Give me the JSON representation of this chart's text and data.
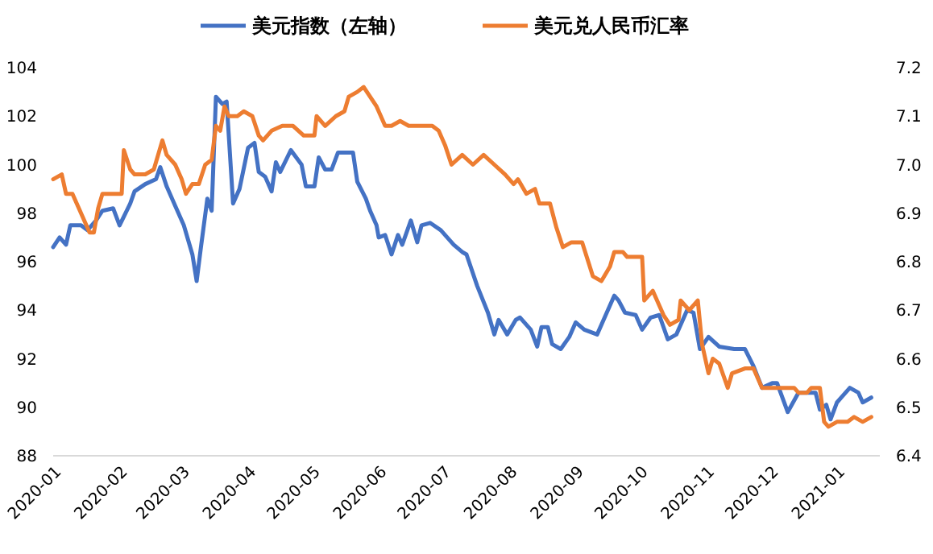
{
  "chart_data": {
    "type": "line",
    "legend": "top",
    "grid": false,
    "marker": "none",
    "line_style": "solid",
    "xlim": [
      "2020-01-01",
      "2021-01-21"
    ],
    "xticks": [
      "2020-01",
      "2020-02",
      "2020-03",
      "2020-04",
      "2020-05",
      "2020-06",
      "2020-07",
      "2020-08",
      "2020-09",
      "2020-10",
      "2020-11",
      "2020-12",
      "2021-01"
    ],
    "ylim": [
      88,
      104
    ],
    "yticks": [
      88,
      90,
      92,
      94,
      96,
      98,
      100,
      102,
      104
    ],
    "y2lim": [
      6.4,
      7.2
    ],
    "y2ticks": [
      {
        "value": 6.4,
        "label": "6.4"
      },
      {
        "value": 6.5,
        "label": "6.5"
      },
      {
        "value": 6.6,
        "label": "6.6"
      },
      {
        "value": 6.7,
        "label": "6.7"
      },
      {
        "value": 6.8,
        "label": "6.8"
      },
      {
        "value": 6.9,
        "label": "6.9"
      },
      {
        "value": 7.0,
        "label": "7.0"
      },
      {
        "value": 7.1,
        "label": "7.1"
      },
      {
        "value": 7.2,
        "label": "7.2"
      }
    ],
    "series": [
      {
        "name": "美元指数（左轴）",
        "color": "#4472c4",
        "x": [
          "2020-01-01",
          "2020-01-04",
          "2020-01-07",
          "2020-01-09",
          "2020-01-14",
          "2020-01-17",
          "2020-01-21",
          "2020-01-24",
          "2020-01-29",
          "2020-02-01",
          "2020-02-06",
          "2020-02-08",
          "2020-02-13",
          "2020-02-18",
          "2020-02-20",
          "2020-02-23",
          "2020-02-27",
          "2020-03-02",
          "2020-03-06",
          "2020-03-08",
          "2020-03-10",
          "2020-03-13",
          "2020-03-15",
          "2020-03-17",
          "2020-03-20",
          "2020-03-22",
          "2020-03-25",
          "2020-03-28",
          "2020-04-01",
          "2020-04-04",
          "2020-04-06",
          "2020-04-09",
          "2020-04-12",
          "2020-04-14",
          "2020-04-16",
          "2020-04-21",
          "2020-04-26",
          "2020-04-28",
          "2020-05-02",
          "2020-05-04",
          "2020-05-07",
          "2020-05-10",
          "2020-05-13",
          "2020-05-20",
          "2020-05-22",
          "2020-05-26",
          "2020-05-28",
          "2020-05-31",
          "2020-06-01",
          "2020-06-04",
          "2020-06-07",
          "2020-06-10",
          "2020-06-12",
          "2020-06-16",
          "2020-06-19",
          "2020-06-21",
          "2020-06-25",
          "2020-06-30",
          "2020-07-04",
          "2020-07-06",
          "2020-07-10",
          "2020-07-12",
          "2020-07-17",
          "2020-07-22",
          "2020-07-25",
          "2020-07-27",
          "2020-07-31",
          "2020-08-04",
          "2020-08-06",
          "2020-08-11",
          "2020-08-14",
          "2020-08-16",
          "2020-08-19",
          "2020-08-21",
          "2020-08-25",
          "2020-08-29",
          "2020-09-01",
          "2020-09-05",
          "2020-09-11",
          "2020-09-15",
          "2020-09-19",
          "2020-09-21",
          "2020-09-24",
          "2020-09-29",
          "2020-10-02",
          "2020-10-06",
          "2020-10-10",
          "2020-10-14",
          "2020-10-18",
          "2020-10-23",
          "2020-10-26",
          "2020-10-29",
          "2020-11-02",
          "2020-11-07",
          "2020-11-14",
          "2020-11-19",
          "2020-11-23",
          "2020-11-27",
          "2020-12-02",
          "2020-12-04",
          "2020-12-09",
          "2020-12-14",
          "2020-12-18",
          "2020-12-22",
          "2020-12-24",
          "2020-12-27",
          "2020-12-29",
          "2021-01-01",
          "2021-01-03",
          "2021-01-07",
          "2021-01-11",
          "2021-01-13",
          "2021-01-17"
        ],
        "values": [
          96.6,
          97.0,
          96.7,
          97.5,
          97.5,
          97.3,
          97.7,
          98.1,
          98.2,
          97.5,
          98.4,
          98.9,
          99.2,
          99.4,
          99.9,
          99.1,
          98.3,
          97.5,
          96.3,
          95.2,
          96.6,
          98.6,
          98.1,
          102.8,
          102.5,
          102.6,
          98.4,
          99.0,
          100.7,
          100.9,
          99.7,
          99.5,
          98.9,
          100.1,
          99.7,
          100.6,
          100.0,
          99.1,
          99.1,
          100.3,
          99.8,
          99.8,
          100.5,
          100.5,
          99.3,
          98.6,
          98.1,
          97.5,
          97.0,
          97.1,
          96.3,
          97.1,
          96.7,
          97.7,
          96.8,
          97.5,
          97.6,
          97.3,
          96.9,
          96.7,
          96.4,
          96.3,
          95.0,
          93.9,
          93.0,
          93.6,
          93.0,
          93.6,
          93.7,
          93.2,
          92.5,
          93.3,
          93.3,
          92.6,
          92.4,
          92.9,
          93.5,
          93.2,
          93.0,
          93.8,
          94.6,
          94.4,
          93.9,
          93.8,
          93.2,
          93.7,
          93.8,
          92.8,
          93.0,
          94.0,
          93.9,
          92.4,
          92.9,
          92.5,
          92.4,
          92.4,
          91.7,
          90.8,
          91.0,
          91.0,
          89.8,
          90.6,
          90.6,
          90.6,
          89.9,
          90.1,
          89.5,
          90.2,
          90.4,
          90.8,
          90.6,
          90.2,
          90.4
        ]
      },
      {
        "name": "美元兑人民币汇率",
        "color": "#ed7d31",
        "axis": "y2",
        "x": [
          "2020-01-01",
          "2020-01-05",
          "2020-01-07",
          "2020-01-10",
          "2020-01-12",
          "2020-01-15",
          "2020-01-18",
          "2020-01-20",
          "2020-01-22",
          "2020-01-24",
          "2020-01-30",
          "2020-02-02",
          "2020-02-03",
          "2020-02-06",
          "2020-02-08",
          "2020-02-13",
          "2020-02-17",
          "2020-02-21",
          "2020-02-23",
          "2020-02-27",
          "2020-03-01",
          "2020-03-03",
          "2020-03-06",
          "2020-03-09",
          "2020-03-12",
          "2020-03-15",
          "2020-03-17",
          "2020-03-19",
          "2020-03-21",
          "2020-03-23",
          "2020-03-27",
          "2020-03-30",
          "2020-04-03",
          "2020-04-06",
          "2020-04-08",
          "2020-04-12",
          "2020-04-17",
          "2020-04-22",
          "2020-04-27",
          "2020-05-02",
          "2020-05-03",
          "2020-05-07",
          "2020-05-12",
          "2020-05-16",
          "2020-05-18",
          "2020-05-22",
          "2020-05-25",
          "2020-05-28",
          "2020-05-31",
          "2020-06-04",
          "2020-06-07",
          "2020-06-11",
          "2020-06-15",
          "2020-06-20",
          "2020-06-26",
          "2020-06-29",
          "2020-07-02",
          "2020-07-05",
          "2020-07-10",
          "2020-07-15",
          "2020-07-20",
          "2020-07-25",
          "2020-07-30",
          "2020-08-03",
          "2020-08-05",
          "2020-08-09",
          "2020-08-13",
          "2020-08-15",
          "2020-08-20",
          "2020-08-23",
          "2020-08-26",
          "2020-08-30",
          "2020-09-04",
          "2020-09-09",
          "2020-09-13",
          "2020-09-17",
          "2020-09-19",
          "2020-09-23",
          "2020-09-25",
          "2020-10-02",
          "2020-10-03",
          "2020-10-07",
          "2020-10-09",
          "2020-10-12",
          "2020-10-15",
          "2020-10-19",
          "2020-10-20",
          "2020-10-24",
          "2020-10-28",
          "2020-10-30",
          "2020-11-02",
          "2020-11-04",
          "2020-11-07",
          "2020-11-11",
          "2020-11-13",
          "2020-11-19",
          "2020-11-23",
          "2020-11-27",
          "2020-12-02",
          "2020-12-07",
          "2020-12-12",
          "2020-12-14",
          "2020-12-18",
          "2020-12-20",
          "2020-12-24",
          "2020-12-26",
          "2020-12-28",
          "2021-01-01",
          "2021-01-06",
          "2021-01-09",
          "2021-01-13",
          "2021-01-17"
        ],
        "values": [
          6.97,
          6.98,
          6.94,
          6.94,
          6.92,
          6.89,
          6.86,
          6.86,
          6.91,
          6.94,
          6.94,
          6.94,
          7.03,
          6.99,
          6.98,
          6.98,
          6.99,
          7.05,
          7.02,
          7.0,
          6.97,
          6.94,
          6.96,
          6.96,
          7.0,
          7.01,
          7.08,
          7.07,
          7.12,
          7.1,
          7.1,
          7.11,
          7.1,
          7.06,
          7.05,
          7.07,
          7.08,
          7.08,
          7.06,
          7.06,
          7.1,
          7.08,
          7.1,
          7.11,
          7.14,
          7.15,
          7.16,
          7.14,
          7.12,
          7.08,
          7.08,
          7.09,
          7.08,
          7.08,
          7.08,
          7.07,
          7.04,
          7.0,
          7.02,
          7.0,
          7.02,
          7.0,
          6.98,
          6.96,
          6.97,
          6.94,
          6.95,
          6.92,
          6.92,
          6.87,
          6.83,
          6.84,
          6.84,
          6.77,
          6.76,
          6.79,
          6.82,
          6.82,
          6.81,
          6.81,
          6.72,
          6.74,
          6.72,
          6.69,
          6.67,
          6.68,
          6.72,
          6.7,
          6.72,
          6.63,
          6.57,
          6.6,
          6.59,
          6.54,
          6.57,
          6.58,
          6.58,
          6.54,
          6.54,
          6.54,
          6.54,
          6.53,
          6.53,
          6.54,
          6.54,
          6.47,
          6.46,
          6.47,
          6.47,
          6.48,
          6.47,
          6.48
        ]
      }
    ]
  }
}
